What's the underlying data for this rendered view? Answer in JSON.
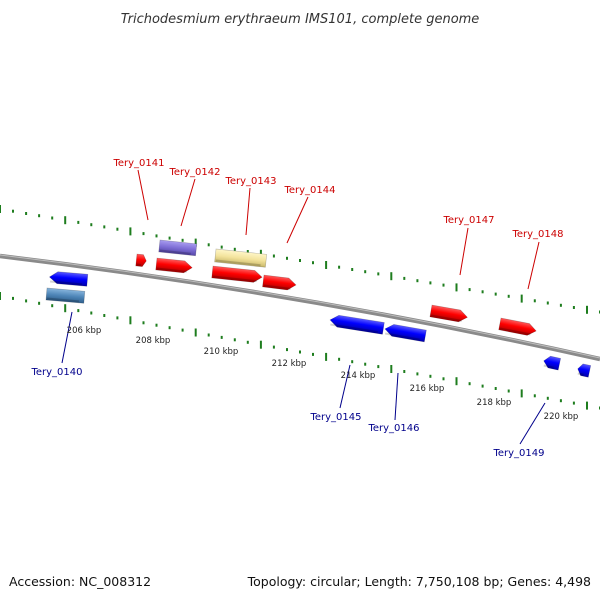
{
  "title": "Trichodesmium erythraeum IMS101, complete genome",
  "footer": {
    "accession": "Accession: NC_008312",
    "topology": "Topology: circular; Length: 7,750,108 bp; Genes: 4,498"
  },
  "colors": {
    "backbone": "#8a8a8a",
    "forward_gene": "#ff0000",
    "reverse_gene": "#0000ff",
    "forward_label": "#cc0000",
    "reverse_label": "#00008b",
    "tick": "#1e7d1e",
    "gene_purple": "#7f6fd6",
    "gene_yellow": "#f3e39c",
    "gene_steel": "#4f86b8"
  },
  "ticks": [
    {
      "label": "206 kbp"
    },
    {
      "label": "208 kbp"
    },
    {
      "label": "210 kbp"
    },
    {
      "label": "212 kbp"
    },
    {
      "label": "214 kbp"
    },
    {
      "label": "216 kbp"
    },
    {
      "label": "218 kbp"
    },
    {
      "label": "220 kbp"
    }
  ],
  "genes": [
    {
      "id": "Tery_0140",
      "strand": "reverse",
      "label": "Tery_0140"
    },
    {
      "id": "Tery_0141",
      "strand": "forward",
      "label": "Tery_0141"
    },
    {
      "id": "Tery_0142",
      "strand": "forward",
      "label": "Tery_0142"
    },
    {
      "id": "Tery_0143",
      "strand": "forward",
      "label": "Tery_0143"
    },
    {
      "id": "Tery_0144",
      "strand": "forward",
      "label": "Tery_0144"
    },
    {
      "id": "Tery_0145",
      "strand": "reverse",
      "label": "Tery_0145"
    },
    {
      "id": "Tery_0146",
      "strand": "reverse",
      "label": "Tery_0146"
    },
    {
      "id": "Tery_0147",
      "strand": "forward",
      "label": "Tery_0147"
    },
    {
      "id": "Tery_0148",
      "strand": "forward",
      "label": "Tery_0148"
    },
    {
      "id": "Tery_0149",
      "strand": "reverse",
      "label": "Tery_0149"
    }
  ]
}
